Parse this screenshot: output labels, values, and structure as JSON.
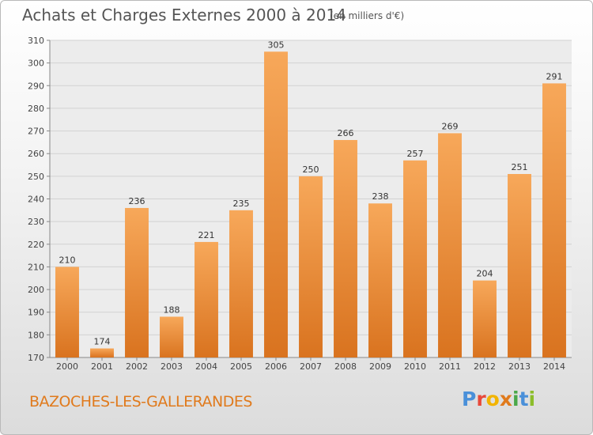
{
  "header": {
    "title": "Achats et Charges Externes 2000 à 2014",
    "subtitle": "(en milliers d'€)"
  },
  "footer": {
    "commune": "BAZOCHES-LES-GALLERANDES",
    "logo_text": "Proxiti"
  },
  "colors": {
    "bar_top": "#f7a85a",
    "bar_bottom": "#d9731f",
    "accent": "#e07a1c"
  },
  "chart_data": {
    "type": "bar",
    "title": "Achats et Charges Externes 2000 à 2014",
    "subtitle": "(en milliers d'€)",
    "xlabel": "",
    "ylabel": "",
    "categories": [
      "2000",
      "2001",
      "2002",
      "2003",
      "2004",
      "2005",
      "2006",
      "2007",
      "2008",
      "2009",
      "2010",
      "2011",
      "2012",
      "2013",
      "2014"
    ],
    "values": [
      210,
      174,
      236,
      188,
      221,
      235,
      305,
      250,
      266,
      238,
      257,
      269,
      204,
      251,
      291
    ],
    "ylim": [
      170,
      310
    ],
    "yticks": [
      170,
      180,
      190,
      200,
      210,
      220,
      230,
      240,
      250,
      260,
      270,
      280,
      290,
      300,
      310
    ],
    "grid": true,
    "data_labels": true
  }
}
